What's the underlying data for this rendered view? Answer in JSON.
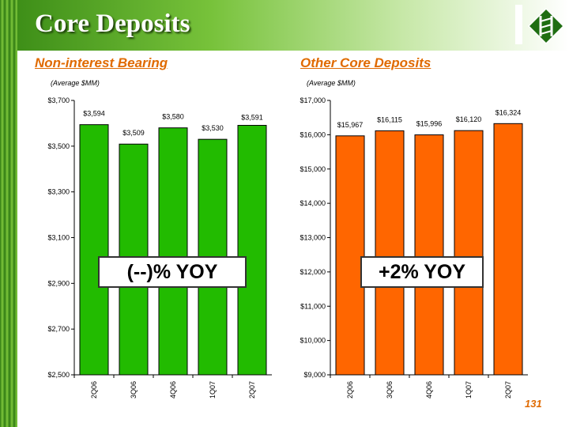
{
  "slide": {
    "title": "Core Deposits",
    "page_number": "131"
  },
  "colors": {
    "green_bar": "#22bb00",
    "orange_bar": "#ff6600",
    "panel_title": "#e06a00"
  },
  "left_panel": {
    "title": "Non-interest Bearing",
    "unit": "(Average $MM)",
    "yoy": "(--)% YOY"
  },
  "right_panel": {
    "title": "Other Core Deposits",
    "unit": "(Average $MM)",
    "yoy": "+2% YOY"
  },
  "chart_data": [
    {
      "type": "bar",
      "categories": [
        "2Q06",
        "3Q06",
        "4Q06",
        "1Q07",
        "2Q07"
      ],
      "values": [
        3594,
        3509,
        3580,
        3530,
        3591
      ],
      "data_labels": [
        "$3,594",
        "$3,509",
        "$3,580",
        "$3,530",
        "$3,591"
      ],
      "ylim": [
        2500,
        3700
      ],
      "yticks": [
        2500,
        2700,
        2900,
        3100,
        3300,
        3500,
        3700
      ],
      "ytick_labels": [
        "$2,500",
        "$2,700",
        "$2,900",
        "$3,100",
        "$3,300",
        "$3,500",
        "$3,700"
      ],
      "color": "#22bb00",
      "grid": false
    },
    {
      "type": "bar",
      "categories": [
        "2Q06",
        "3Q06",
        "4Q06",
        "1Q07",
        "2Q07"
      ],
      "values": [
        15967,
        16115,
        15996,
        16120,
        16324
      ],
      "data_labels": [
        "$15,967",
        "$16,115",
        "$15,996",
        "$16,120",
        "$16,324"
      ],
      "ylim": [
        9000,
        17000
      ],
      "yticks": [
        9000,
        10000,
        11000,
        12000,
        13000,
        14000,
        15000,
        16000,
        17000
      ],
      "ytick_labels": [
        "$9,000",
        "$10,000",
        "$11,000",
        "$12,000",
        "$13,000",
        "$14,000",
        "$15,000",
        "$16,000",
        "$17,000"
      ],
      "color": "#ff6600",
      "grid": false
    }
  ]
}
